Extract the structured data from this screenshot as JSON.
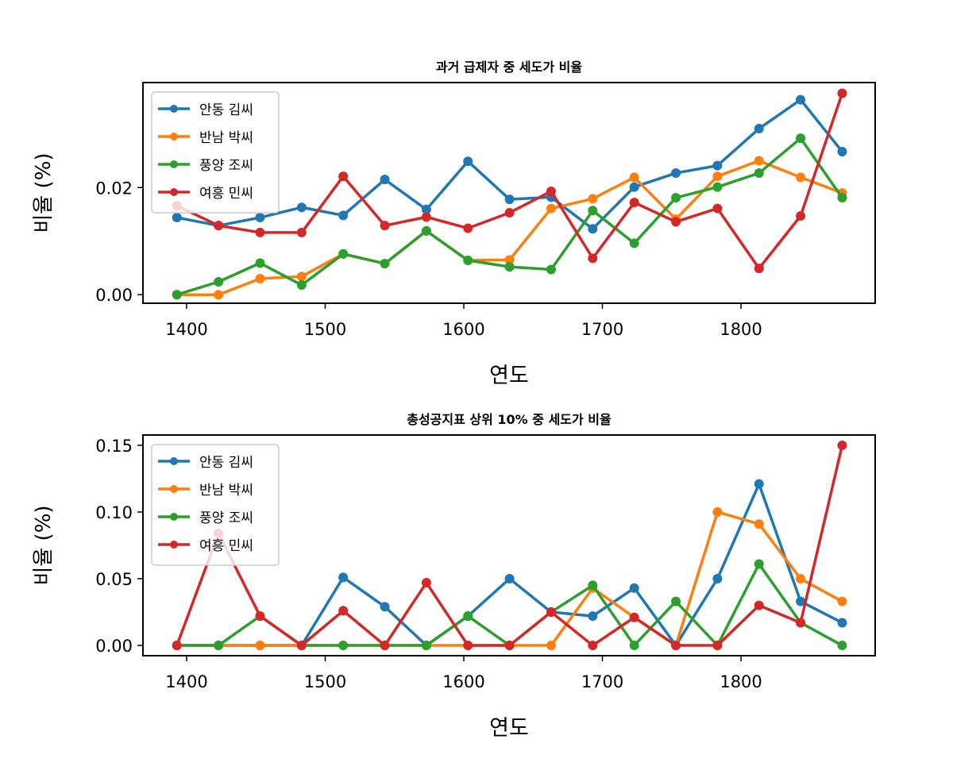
{
  "chart_data": [
    {
      "type": "line",
      "title": "과거 급제자 중 세도가 비율",
      "xlabel": "연도",
      "ylabel": "비율 (%)",
      "xlim": [
        1368.5,
        1896.8
      ],
      "ylim": [
        -0.0016,
        0.0396
      ],
      "xticks": [
        1400,
        1500,
        1600,
        1700,
        1800
      ],
      "yticks": [
        "0.00",
        "0.02"
      ],
      "ytick_values": [
        0,
        0.02
      ],
      "legend": "top-left",
      "x": [
        1393,
        1423,
        1453,
        1483,
        1513,
        1543,
        1573,
        1603,
        1633,
        1663,
        1693,
        1723,
        1753,
        1783,
        1813,
        1843,
        1873
      ],
      "series": [
        {
          "name": "안동 김씨",
          "color": "#1f77b4",
          "values": [
            0.0144,
            0.0129,
            0.0144,
            0.0163,
            0.0148,
            0.0215,
            0.0159,
            0.0249,
            0.0178,
            0.0182,
            0.0123,
            0.0201,
            0.0227,
            0.0241,
            0.031,
            0.0364,
            0.0267
          ]
        },
        {
          "name": "반남 박씨",
          "color": "#ff7f0e",
          "values": [
            0,
            0,
            0.003,
            0.0034,
            0.0076,
            0.0058,
            0.0119,
            0.0064,
            0.0065,
            0.0161,
            0.0179,
            0.0219,
            0.0141,
            0.0221,
            0.025,
            0.0219,
            0.019
          ]
        },
        {
          "name": "풍양 조씨",
          "color": "#2ca02c",
          "values": [
            0,
            0.0024,
            0.0059,
            0.0018,
            0.0076,
            0.0058,
            0.0119,
            0.0064,
            0.0052,
            0.0047,
            0.0157,
            0.0096,
            0.0181,
            0.0201,
            0.0227,
            0.0292,
            0.0181
          ]
        },
        {
          "name": "여흥 민씨",
          "color": "#d62728",
          "values": [
            0.0166,
            0.0129,
            0.0116,
            0.0116,
            0.0221,
            0.0129,
            0.0145,
            0.0124,
            0.0153,
            0.0193,
            0.0068,
            0.0172,
            0.0136,
            0.0161,
            0.0049,
            0.0147,
            0.0376
          ]
        }
      ]
    },
    {
      "type": "line",
      "title": "총성공지표 상위 10% 중 세도가 비율",
      "xlabel": "연도",
      "ylabel": "비율 (%)",
      "xlim": [
        1368.5,
        1896.8
      ],
      "ylim": [
        -0.0077,
        0.1577
      ],
      "xticks": [
        1400,
        1500,
        1600,
        1700,
        1800
      ],
      "yticks": [
        "0.00",
        "0.05",
        "0.10",
        "0.15"
      ],
      "ytick_values": [
        0,
        0.05,
        0.1,
        0.15
      ],
      "legend": "top-left",
      "x": [
        1393,
        1423,
        1453,
        1483,
        1513,
        1543,
        1573,
        1603,
        1633,
        1663,
        1693,
        1723,
        1753,
        1783,
        1813,
        1843,
        1873
      ],
      "series": [
        {
          "name": "안동 김씨",
          "color": "#1f77b4",
          "values": [
            0,
            0,
            0,
            0,
            0.051,
            0.029,
            0,
            0.022,
            0.05,
            0.025,
            0.022,
            0.043,
            0,
            0.05,
            0.121,
            0.033,
            0.017
          ]
        },
        {
          "name": "반남 박씨",
          "color": "#ff7f0e",
          "values": [
            0,
            0,
            0,
            0,
            0,
            0,
            0,
            0,
            0,
            0,
            0.043,
            0.021,
            0,
            0.1,
            0.091,
            0.05,
            0.033
          ]
        },
        {
          "name": "풍양 조씨",
          "color": "#2ca02c",
          "values": [
            0,
            0,
            0.022,
            0,
            0,
            0,
            0,
            0.022,
            0,
            0.025,
            0.045,
            0,
            0.033,
            0,
            0.061,
            0.017,
            0
          ]
        },
        {
          "name": "여흥 민씨",
          "color": "#d62728",
          "values": [
            0,
            0.084,
            0.022,
            0,
            0.026,
            0,
            0.047,
            0,
            0,
            0.025,
            0,
            0.021,
            0,
            0,
            0.03,
            0.017,
            0.15
          ]
        }
      ]
    }
  ]
}
